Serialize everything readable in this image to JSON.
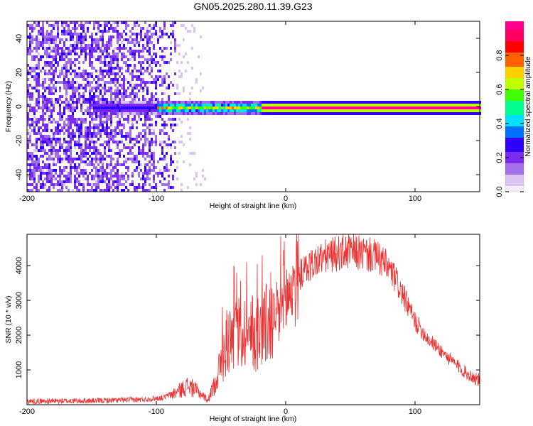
{
  "title": "GN05.2025.280.11.39.G23",
  "chart_data": [
    {
      "type": "heatmap",
      "panel": "spectrogram",
      "xlabel": "Height of straight line (km)",
      "ylabel": "Frequency (Hz)",
      "xlim": [
        -200,
        150
      ],
      "ylim": [
        -50,
        50
      ],
      "xticks": [
        -200,
        -100,
        0,
        100
      ],
      "yticks": [
        -40,
        -20,
        0,
        20,
        40
      ],
      "colorbar": {
        "label": "Normalized spectral amplitude",
        "range": [
          0,
          1
        ],
        "ticks": [
          0.0,
          0.2,
          0.4,
          0.6,
          0.8
        ],
        "tick_labels": [
          "0.0",
          "0.2",
          "0.4",
          "0.6",
          "0.8"
        ],
        "colors": [
          "#f5eefa",
          "#dcc4f2",
          "#a270e8",
          "#7a2cf0",
          "#3000ff",
          "#0070ff",
          "#00e0ff",
          "#00ff90",
          "#40ff00",
          "#c0ff00",
          "#ffd000",
          "#ff6000",
          "#ff0000",
          "#ff0060",
          "#ff0090"
        ]
      },
      "description_points": {
        "noise_region_end_x": -85,
        "sparse_noise_end_x": -62,
        "line_frequency_hz": 0,
        "line_start_x": -150,
        "strong_line_start_x": -20
      }
    },
    {
      "type": "line",
      "panel": "snr",
      "xlabel": "Height of straight line (km)",
      "ylabel": "SNR (10 * v/v)",
      "xlim": [
        -200,
        150
      ],
      "ylim": [
        0,
        4900
      ],
      "xticks": [
        -200,
        -100,
        0,
        100
      ],
      "yticks": [
        1000,
        2000,
        3000,
        4000
      ],
      "series": [
        {
          "name": "SNR",
          "color": "#f03030",
          "envelope_x": [
            -200,
            -150,
            -110,
            -95,
            -85,
            -75,
            -65,
            -60,
            -55,
            -50,
            -45,
            -40,
            -35,
            -30,
            -25,
            -20,
            -15,
            -10,
            -5,
            0,
            10,
            20,
            30,
            40,
            50,
            60,
            70,
            75,
            80,
            85,
            90,
            95,
            100,
            110,
            120,
            130,
            140,
            150
          ],
          "envelope_y": [
            100,
            110,
            150,
            200,
            350,
            550,
            300,
            120,
            600,
            1200,
            1800,
            2200,
            2000,
            2100,
            1900,
            2200,
            2300,
            2400,
            2600,
            3000,
            3700,
            4050,
            4250,
            4350,
            4400,
            4350,
            4250,
            4100,
            3900,
            3600,
            3200,
            2800,
            2400,
            1900,
            1550,
            1200,
            900,
            700
          ],
          "spikes": [
            {
              "x": -40,
              "y": 4000
            },
            {
              "x": -38,
              "y": 3800
            },
            {
              "x": -30,
              "y": 4100
            },
            {
              "x": -22,
              "y": 4050
            },
            {
              "x": -18,
              "y": 4300
            },
            {
              "x": -4,
              "y": 4850
            },
            {
              "x": -1,
              "y": 4700
            }
          ]
        }
      ]
    }
  ]
}
